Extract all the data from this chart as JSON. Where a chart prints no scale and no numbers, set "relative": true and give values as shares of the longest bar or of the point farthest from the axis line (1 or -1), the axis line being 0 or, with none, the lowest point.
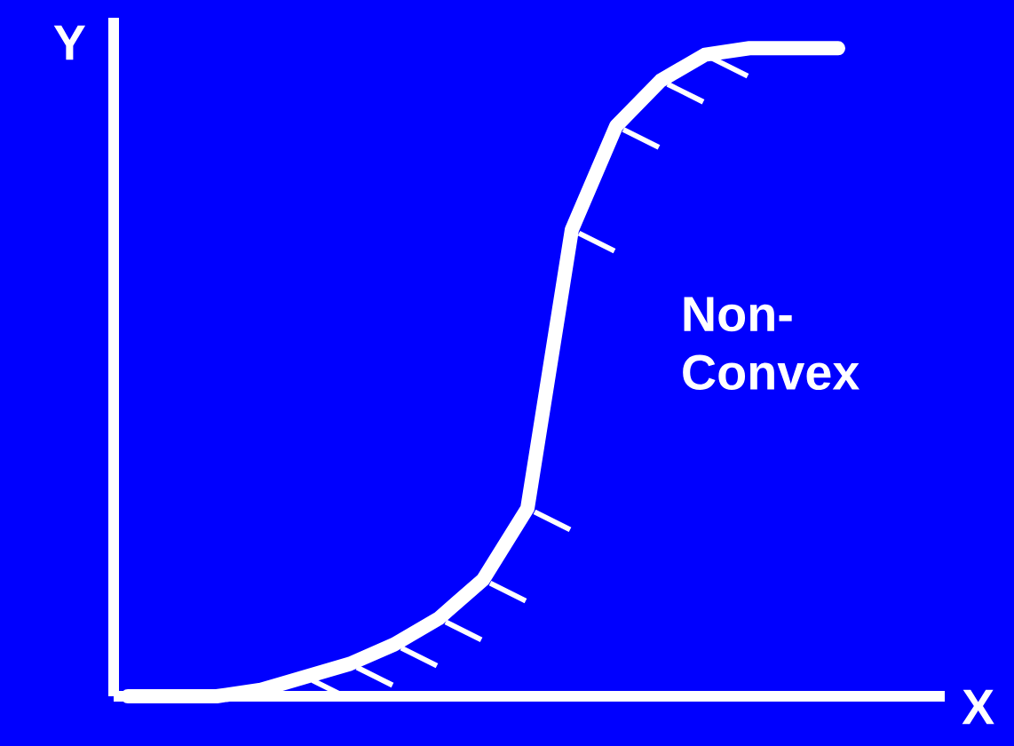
{
  "chart_data": {
    "type": "line",
    "relative": true,
    "xlabel": "X",
    "ylabel": "Y",
    "color": "#ffffff",
    "categories": [
      null,
      null,
      null,
      null,
      null,
      null,
      null,
      null,
      null,
      null,
      null,
      null,
      null,
      null,
      null,
      null,
      null
    ],
    "values": [
      0,
      0,
      0,
      0.01,
      0.03,
      0.05,
      0.08,
      0.12,
      0.18,
      0.29,
      0.72,
      0.88,
      0.95,
      0.99,
      1,
      1,
      1
    ],
    "annotations": [
      "Non-Convex"
    ]
  }
}
